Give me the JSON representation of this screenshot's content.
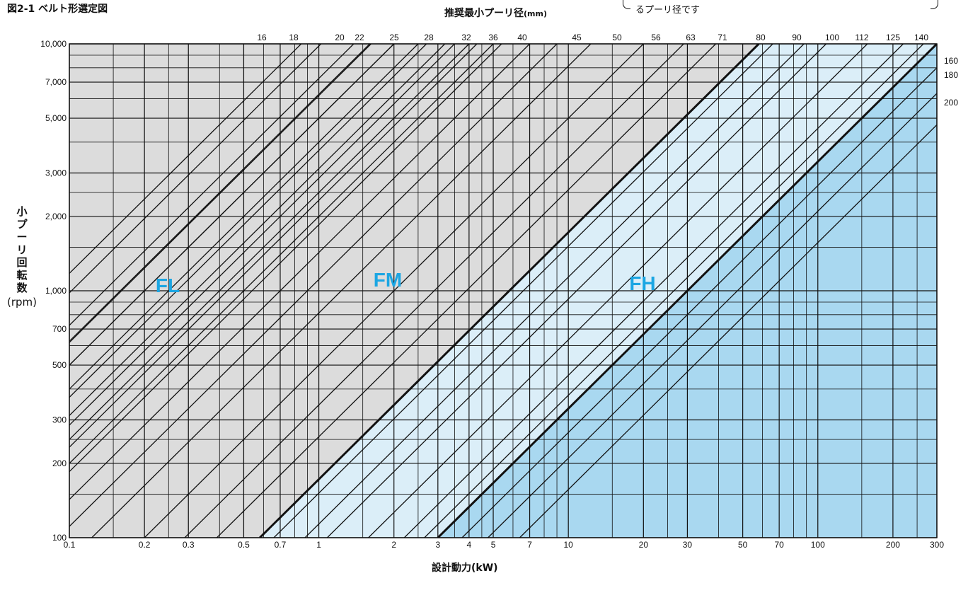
{
  "figure_title": "図2-1 ベルト形選定図",
  "top_axis_title": "推奨最小プーリ径",
  "top_axis_unit": "(mm)",
  "note_text": "るプーリ径です",
  "ylabel_jp": "小プーリ回転数",
  "ylabel_unit": "(rpm)",
  "xlabel": "設計動力(kW)",
  "colors": {
    "FL": "#dcdcdc",
    "FM": "#dbeef8",
    "FH": "#a9d8f0",
    "label": "#1ba6e3",
    "grid": "#111111"
  },
  "chart_data": {
    "type": "line",
    "title": "図2-1 ベルト形選定図",
    "xlabel": "設計動力(kW)",
    "ylabel": "小プーリ回転数(rpm)",
    "x_scale": "log",
    "y_scale": "log",
    "xlim": [
      0.1,
      300
    ],
    "ylim": [
      100,
      10000
    ],
    "x_ticks": [
      0.1,
      0.2,
      0.3,
      0.5,
      0.7,
      1,
      2,
      3,
      4,
      5,
      7,
      10,
      20,
      30,
      50,
      70,
      100,
      200,
      300
    ],
    "x_tick_labels": [
      "0.1",
      "0.2",
      "0.3",
      "0.5",
      "0.7",
      "1",
      "2",
      "3",
      "4",
      "5",
      "7",
      "10",
      "20",
      "30",
      "50",
      "70",
      "100",
      "200",
      "300"
    ],
    "y_ticks": [
      100,
      200,
      300,
      500,
      700,
      1000,
      2000,
      3000,
      5000,
      7000,
      10000
    ],
    "y_tick_labels": [
      "100",
      "200",
      "300",
      "500",
      "700",
      "1,000",
      "2,000",
      "3,000",
      "5,000",
      "7,000",
      "10,000"
    ],
    "pulley_diameters_mm": [
      "16",
      "18",
      "20",
      "22",
      "25",
      "28",
      "32",
      "36",
      "40",
      "45",
      "50",
      "56",
      "63",
      "71",
      "80",
      "90",
      "100",
      "112",
      "125",
      "140",
      "160",
      "180",
      "200"
    ],
    "pulley_top_x_kw": [
      0.85,
      1.02,
      1.38,
      1.62,
      2.0,
      2.7,
      3.5,
      4.3,
      5.4,
      9.0,
      12.3,
      20.0,
      29.0,
      39.0,
      66.0,
      88.0,
      108.0,
      158.0,
      220.0,
      265.0
    ],
    "pulley_right_y_rpm": [
      8000,
      6300,
      4700
    ],
    "zones": [
      {
        "name": "FL",
        "boundary_kw_at_100rpm": 0.06
      },
      {
        "name": "FM",
        "boundary_kw_at_100rpm": 0.58
      },
      {
        "name": "FH",
        "boundary_kw_at_100rpm": 3.0
      }
    ],
    "zone_boundary_slope": 1.0,
    "grid": true
  }
}
